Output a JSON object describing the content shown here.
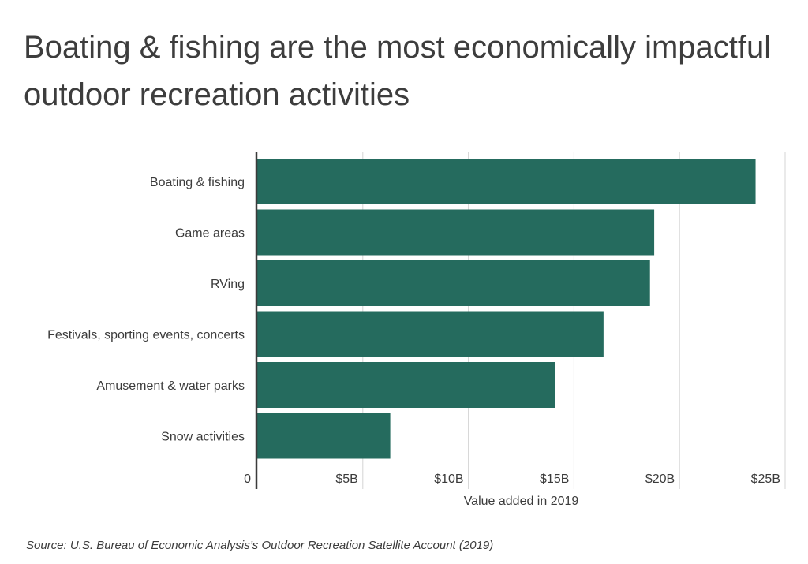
{
  "title": "Boating & fishing are the most economically impactful outdoor recreation activities",
  "source": "Source:  U.S. Bureau of Economic Analysis’s Outdoor Recreation Satellite Account (2019)",
  "colors": {
    "bar": "#256b5e",
    "axis": "#3b3b3b",
    "grid": "#d4d4d4"
  },
  "chart_data": {
    "type": "bar",
    "orientation": "horizontal",
    "categories": [
      "Boating & fishing",
      "Game areas",
      "RVing",
      "Festivals, sporting events, concerts",
      "Amusement & water parks",
      "Snow activities"
    ],
    "values": [
      23.6,
      18.8,
      18.6,
      16.4,
      14.1,
      6.3
    ],
    "xlabel": "Value added in 2019",
    "ylabel": "",
    "xlim": [
      0,
      25
    ],
    "ticks": [
      {
        "value": 0,
        "label": "0"
      },
      {
        "value": 5,
        "label": "$5B"
      },
      {
        "value": 10,
        "label": "$10B"
      },
      {
        "value": 15,
        "label": "$15B"
      },
      {
        "value": 20,
        "label": "$20B"
      },
      {
        "value": 25,
        "label": "$25B"
      }
    ],
    "grid": true
  }
}
